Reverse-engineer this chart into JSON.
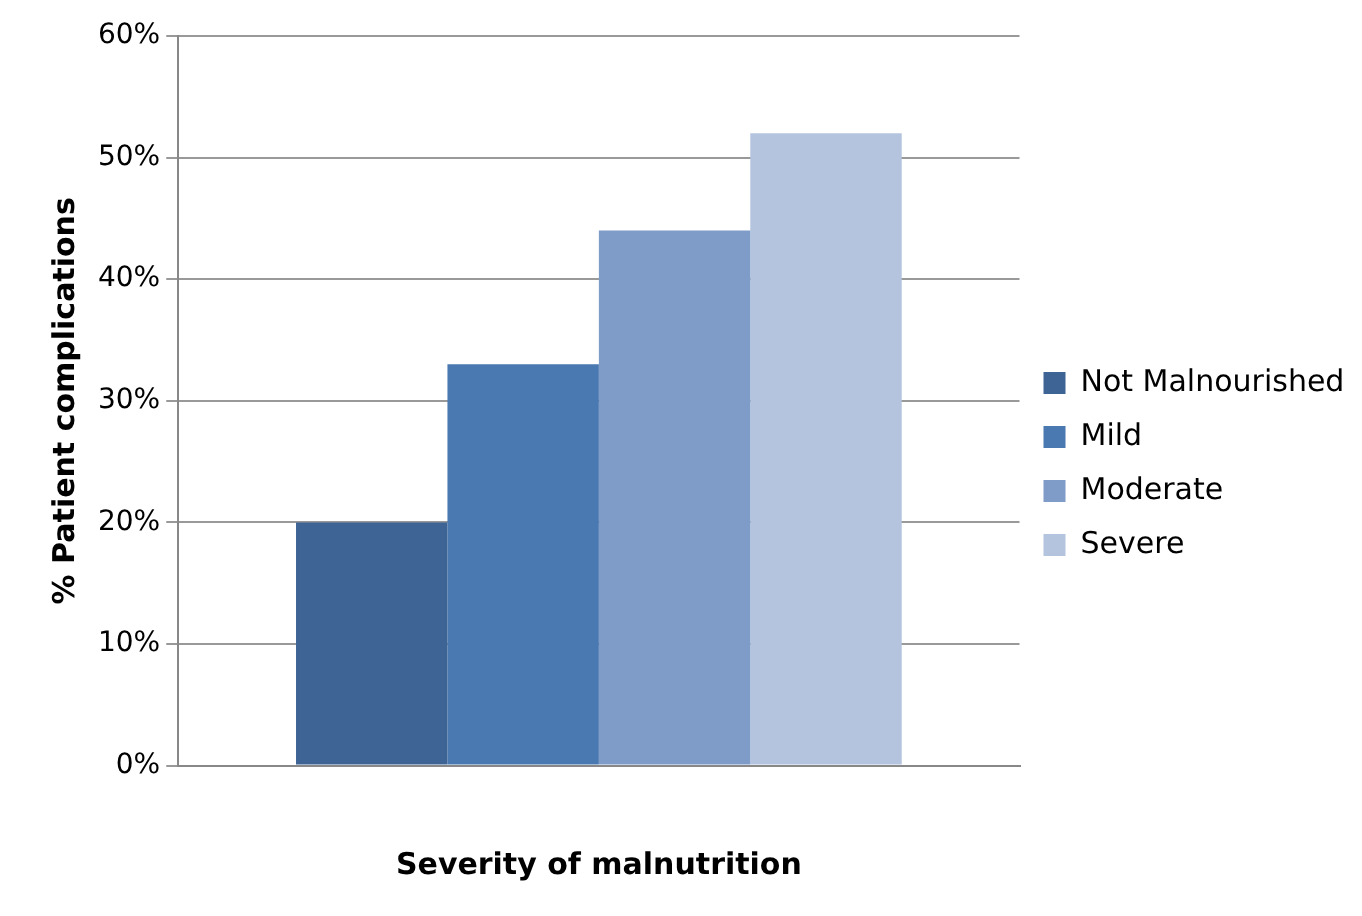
{
  "chart_data": {
    "type": "bar",
    "xlabel": "Severity of malnutrition",
    "ylabel": "% Patient complications",
    "categories": [
      null
    ],
    "series": [
      {
        "name": "Not Malnourished",
        "color": "#3e6496",
        "values": [
          20
        ]
      },
      {
        "name": "Mild",
        "color": "#4a78b0",
        "values": [
          33
        ]
      },
      {
        "name": "Moderate",
        "color": "#7f9cc8",
        "values": [
          44
        ]
      },
      {
        "name": "Severe",
        "color": "#b5c4de",
        "values": [
          52
        ]
      }
    ],
    "ylim": [
      0,
      60
    ],
    "yticks": [
      {
        "value": 0,
        "label": "0%"
      },
      {
        "value": 10,
        "label": "10%"
      },
      {
        "value": 20,
        "label": "20%"
      },
      {
        "value": 30,
        "label": "30%"
      },
      {
        "value": 40,
        "label": "40%"
      },
      {
        "value": 50,
        "label": "50%"
      },
      {
        "value": 60,
        "label": "60%"
      }
    ],
    "grid": "y",
    "legend": "right"
  }
}
